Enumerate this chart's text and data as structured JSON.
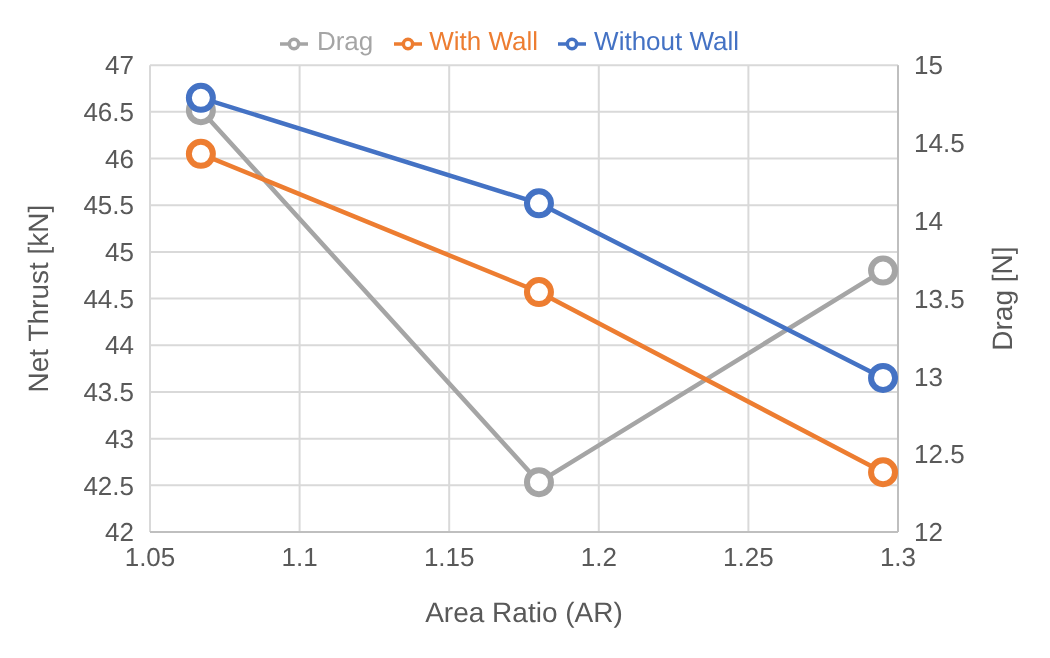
{
  "chart_data": {
    "type": "line",
    "xlabel": "Area Ratio (AR)",
    "ylabel": "Net Thrust [kN]",
    "y2label": "Drag [N]",
    "xlim": [
      1.05,
      1.3
    ],
    "xticks": [
      1.05,
      1.1,
      1.15,
      1.2,
      1.25,
      1.3
    ],
    "ylim": [
      42,
      47
    ],
    "yticks": [
      42,
      42.5,
      43,
      43.5,
      44,
      44.5,
      45,
      45.5,
      46,
      46.5,
      47
    ],
    "y2lim": [
      12,
      15
    ],
    "y2ticks": [
      12,
      12.5,
      13,
      13.5,
      14,
      14.5,
      15
    ],
    "x": [
      1.067,
      1.18,
      1.295
    ],
    "series": [
      {
        "name": "Without Wall",
        "color": "#4472c4",
        "values": [
          46.65,
          45.52,
          43.65
        ]
      },
      {
        "name": "With Wall",
        "color": "#ed7d31",
        "values": [
          46.05,
          44.57,
          42.64
        ]
      },
      {
        "name": "Drag",
        "color": "#a5a5a5",
        "values": [
          14.71,
          12.32,
          13.68
        ],
        "axis": "y2"
      }
    ],
    "grid": true,
    "legend": "top",
    "marker": "circle",
    "line_style": "solid"
  }
}
